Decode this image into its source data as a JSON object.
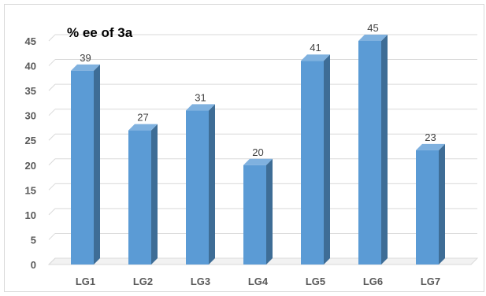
{
  "chart_data": {
    "type": "bar",
    "title": "% ee of 3a",
    "categories": [
      "LG1",
      "LG2",
      "LG3",
      "LG4",
      "LG5",
      "LG6",
      "LG7"
    ],
    "values": [
      39,
      27,
      31,
      20,
      41,
      45,
      23
    ],
    "ylim": [
      0,
      45
    ],
    "yticks": [
      0,
      5,
      10,
      15,
      20,
      25,
      30,
      35,
      40,
      45
    ],
    "xlabel": "",
    "ylabel": "",
    "grid": true,
    "style": "3d-column",
    "colors": {
      "bar_front": "#5b9bd5",
      "bar_side": "#3e6d96",
      "bar_top": "#7fb1df",
      "grid": "#d9d9d9"
    }
  }
}
